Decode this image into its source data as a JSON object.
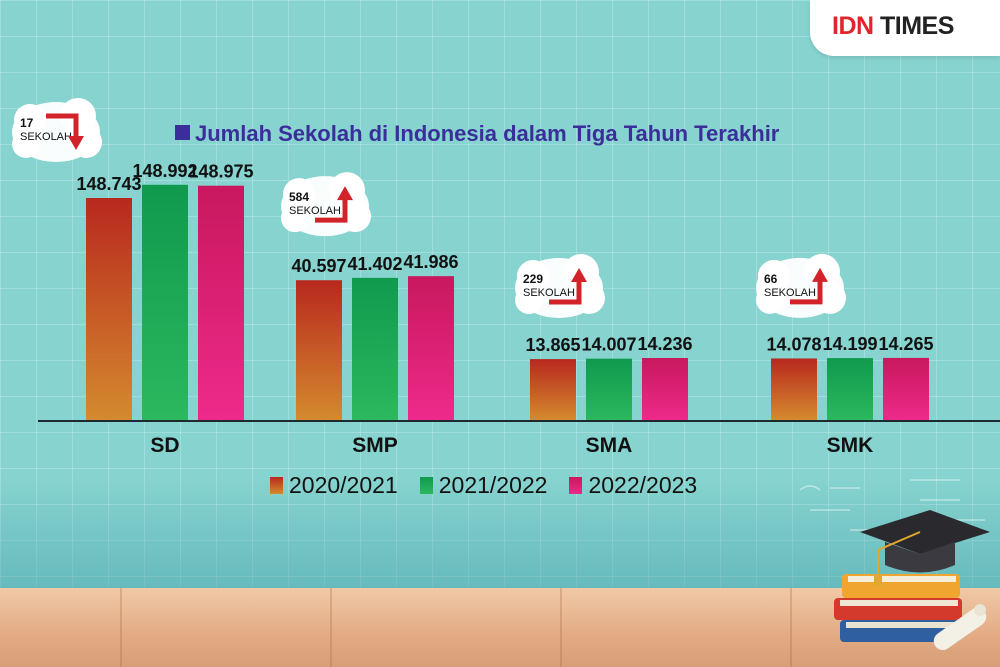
{
  "header": {
    "brand_red": "IDN",
    "brand_dark": "TIMES"
  },
  "chart_data": {
    "type": "bar",
    "title": "Jumlah Sekolah di Indonesia dalam Tiga Tahun Terakhir",
    "categories": [
      "SD",
      "SMP",
      "SMA",
      "SMK"
    ],
    "series": [
      {
        "name": "2020/2021",
        "values": [
          148743,
          40597,
          13865,
          14078
        ],
        "labels": [
          "148.743",
          "40.597",
          "13.865",
          "14.078"
        ],
        "color": "#b8281e"
      },
      {
        "name": "2021/2022",
        "values": [
          148992,
          41402,
          14007,
          14199
        ],
        "labels": [
          "148.992",
          "41.402",
          "14.007",
          "14.199"
        ],
        "color": "#0f9a4e"
      },
      {
        "name": "2022/2023",
        "values": [
          148975,
          41986,
          14236,
          14265
        ],
        "labels": [
          "148.975",
          "41.986",
          "14.236",
          "14.265"
        ],
        "color": "#c8185e"
      }
    ],
    "annotations": [
      {
        "category": "SD",
        "number": "17",
        "unit": "SEKOLAH",
        "direction": "down"
      },
      {
        "category": "SMP",
        "number": "584",
        "unit": "SEKOLAH",
        "direction": "up"
      },
      {
        "category": "SMA",
        "number": "229",
        "unit": "SEKOLAH",
        "direction": "up"
      },
      {
        "category": "SMK",
        "number": "66",
        "unit": "SEKOLAH",
        "direction": "up"
      }
    ],
    "legend_position": "bottom-center",
    "grid": false
  }
}
